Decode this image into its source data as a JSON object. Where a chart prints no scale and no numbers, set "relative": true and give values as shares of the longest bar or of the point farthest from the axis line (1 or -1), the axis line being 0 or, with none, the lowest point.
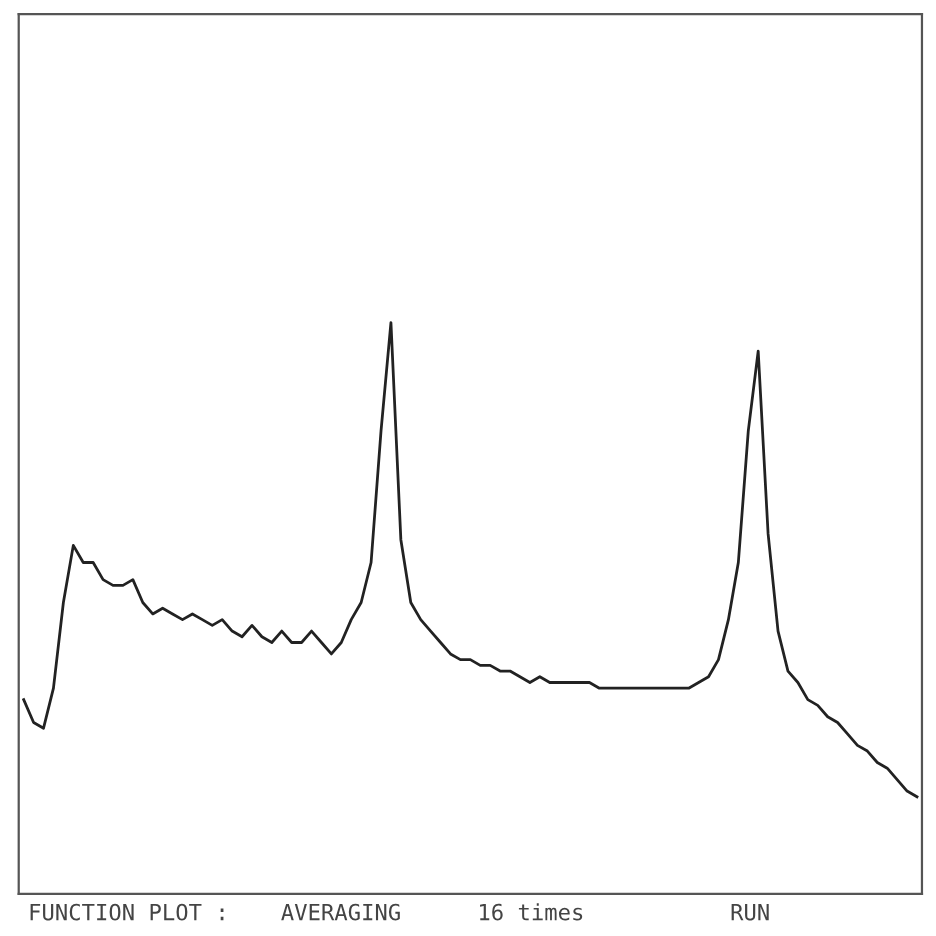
{
  "chart_data": {
    "type": "line",
    "relative": true,
    "grid": false,
    "legend": false,
    "marker": "none",
    "line_style": "solid",
    "categories": [
      null,
      null,
      null,
      null,
      null,
      null,
      null,
      null,
      null,
      null,
      null,
      null,
      null,
      null,
      null,
      null,
      null,
      null,
      null,
      null,
      null,
      null,
      null,
      null,
      null,
      null,
      null,
      null,
      null,
      null,
      null,
      null,
      null,
      null,
      null,
      null,
      null,
      null,
      null,
      null,
      null,
      null,
      null,
      null,
      null,
      null,
      null,
      null,
      null,
      null,
      null,
      null,
      null,
      null,
      null,
      null,
      null,
      null,
      null,
      null,
      null,
      null,
      null,
      null,
      null,
      null,
      null,
      null,
      null,
      null,
      null,
      null,
      null,
      null,
      null,
      null,
      null,
      null,
      null,
      null,
      null,
      null,
      null,
      null,
      null,
      null,
      null,
      null,
      null,
      null,
      null
    ],
    "series": [
      {
        "color": "#222222",
        "values": [
          0.34,
          0.3,
          0.29,
          0.36,
          0.51,
          0.61,
          0.58,
          0.58,
          0.55,
          0.54,
          0.54,
          0.55,
          0.51,
          0.49,
          0.5,
          0.49,
          0.48,
          0.49,
          0.48,
          0.47,
          0.48,
          0.46,
          0.45,
          0.47,
          0.45,
          0.44,
          0.46,
          0.44,
          0.44,
          0.46,
          0.44,
          0.42,
          0.44,
          0.48,
          0.51,
          0.58,
          0.81,
          1,
          0.62,
          0.51,
          0.48,
          0.46,
          0.44,
          0.42,
          0.41,
          0.41,
          0.4,
          0.4,
          0.39,
          0.39,
          0.38,
          0.37,
          0.38,
          0.37,
          0.37,
          0.37,
          0.37,
          0.37,
          0.36,
          0.36,
          0.36,
          0.36,
          0.36,
          0.36,
          0.36,
          0.36,
          0.36,
          0.36,
          0.37,
          0.38,
          0.41,
          0.48,
          0.58,
          0.81,
          0.95,
          0.63,
          0.46,
          0.39,
          0.37,
          0.34,
          0.33,
          0.31,
          0.3,
          0.28,
          0.26,
          0.25,
          0.23,
          0.22,
          0.2,
          0.18,
          0.17
        ]
      }
    ],
    "annotations": [
      "FUNCTION PLOT :",
      "AVERAGING",
      "16 times",
      "RUN"
    ]
  }
}
